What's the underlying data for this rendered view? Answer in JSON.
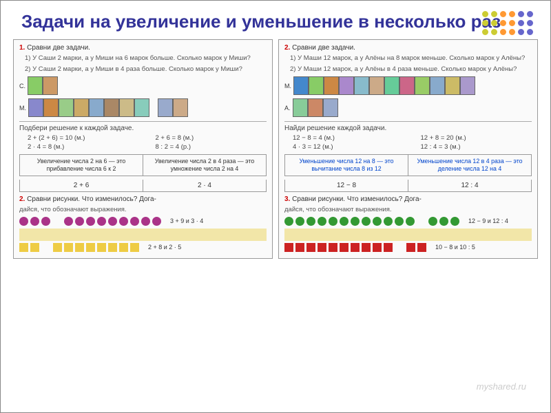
{
  "title": "Задачи на увеличение и уменьшение в несколько раз",
  "dots_colors": [
    "#cccc33",
    "#ff9933",
    "#6666cc"
  ],
  "left": {
    "p1_num": "1.",
    "p1_head": "Сравни две задачи.",
    "p1_t1": "1) У Саши 2 марки, а у Миши на 6 марок больше. Сколько марок у Миши?",
    "p1_t2": "2) У Саши 2 марки, а у Миши в 4 раза больше. Сколько марок у Миши?",
    "row_s_label": "С.",
    "row_m_label": "М.",
    "stamps_s": [
      "#88cc66",
      "#cc9966"
    ],
    "stamps_m": [
      "#8888cc",
      "#cc8844",
      "#99cc88",
      "#ccaa66",
      "#88aacc",
      "#aa8866",
      "#ccbb88",
      "#88ccbb"
    ],
    "stamps_extra": [
      "#99aacc",
      "#ccaa88"
    ],
    "subhead": "Подбери решение к каждой задаче.",
    "eq1a": "2 + (2 + 6) = 10 (м.)",
    "eq1b": "2 + 6 = 8 (м.)",
    "eq2a": "2 · 4 = 8 (м.)",
    "eq2b": "8 : 2 = 4 (р.)",
    "rule1": "Увеличение числа 2 на 6 — это прибавление числа 6 к 2",
    "rule2": "Увеличение числа 2 в 4 раза — это умножение числа 2 на 4",
    "foot1": "2 + 6",
    "foot2": "2 · 4",
    "p2_num": "2.",
    "p2_head": "Сравни рисунки. Что изменилось? Дога-",
    "p2_head2": "дайся, что обозначают выражения.",
    "circ_color": "#aa3388",
    "circ_expr": "3 + 9  и  3 · 4",
    "sq_color": "#eecc44",
    "sq_expr": "2 + 8  и  2 · 5"
  },
  "right": {
    "p1_num": "2.",
    "p1_head": "Сравни две задачи.",
    "p1_t1": "1) У Маши 12 марок, а у Алёны на 8 марок меньше. Сколько марок у Алёны?",
    "p1_t2": "2) У Маши 12 марок, а у Алёны в 4 раза меньше. Сколько марок у Алёны?",
    "row_m_label": "М.",
    "row_a_label": "А.",
    "stamps_m": [
      "#4488cc",
      "#88cc66",
      "#cc8844",
      "#aa88cc",
      "#88bbcc",
      "#ccaa88",
      "#66cc99",
      "#cc6688",
      "#99cc66",
      "#88aacc",
      "#ccbb66",
      "#aa99cc"
    ],
    "stamps_a": [
      "#88cc99",
      "#cc8866",
      "#99aacc"
    ],
    "subhead": "Найди решение каждой задачи.",
    "eq1a": "12 − 8 = 4 (м.)",
    "eq1b": "12 + 8 = 20 (м.)",
    "eq2a": "4 · 3 = 12 (м.)",
    "eq2b": "12 : 4 = 3 (м.)",
    "rule1": "Уменьшение числа 12 на 8 — это вычитание числа 8 из 12",
    "rule2": "Уменьшение числа 12 в 4 раза — это деление числа 12 на 4",
    "foot1": "12 − 8",
    "foot2": "12 : 4",
    "p2_num": "3.",
    "p2_head": "Сравни рисунки. Что изменилось? Дога-",
    "p2_head2": "дайся, что обозначают выражения.",
    "circ_color": "#339933",
    "circ_expr": "12 − 9  и  12 : 4",
    "sq_color": "#cc2222",
    "sq_expr": "10 − 8  и  10 : 5",
    "watermark": "myshared.ru"
  }
}
